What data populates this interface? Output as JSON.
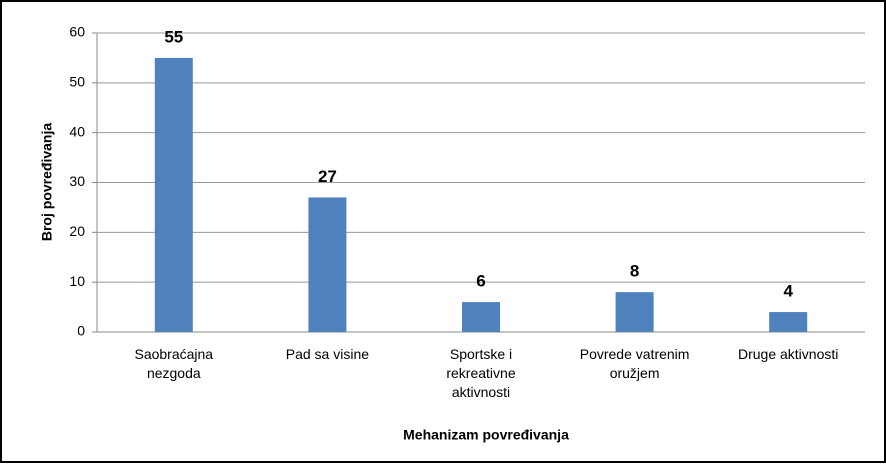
{
  "chart_data": {
    "type": "bar",
    "categories": [
      "Saobraćajna nezgoda",
      "Pad sa visine",
      "Sportske i rekreativne aktivnosti",
      "Povrede vatrenim oružjem",
      "Druge aktivnosti"
    ],
    "values": [
      55,
      27,
      6,
      8,
      4
    ],
    "color": "#4f81bd",
    "x_label": "Mehanizam povređivanja",
    "y_label": "Broj povređivanja",
    "ylim": [
      0,
      60
    ],
    "yticks": [
      0,
      10,
      20,
      30,
      40,
      50,
      60
    ],
    "grid": true
  }
}
